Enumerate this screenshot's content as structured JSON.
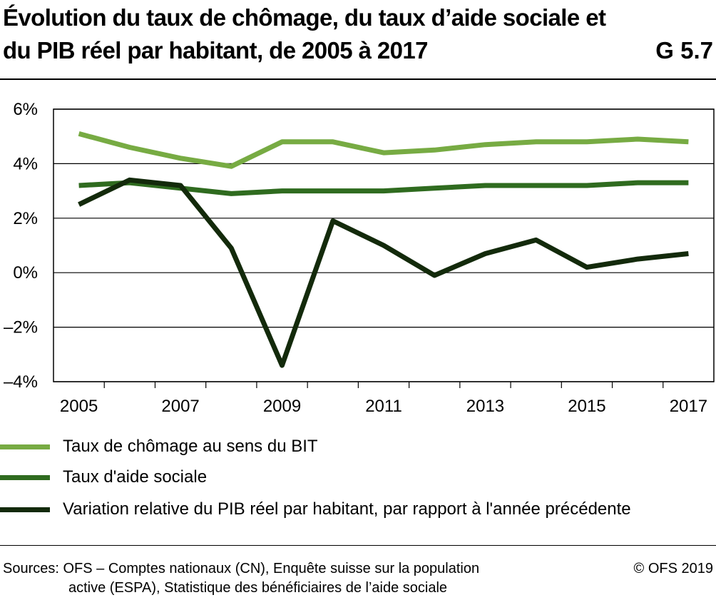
{
  "header": {
    "title": "Évolution du taux de chômage, du taux d’aide sociale et du PIB réel par habitant, de 2005 à 2017",
    "code": "G 5.7"
  },
  "chart_data": {
    "type": "line",
    "title": "Évolution du taux de chômage, du taux d’aide sociale et du PIB réel par habitant, de 2005 à 2017",
    "x": [
      2005,
      2006,
      2007,
      2008,
      2009,
      2010,
      2011,
      2012,
      2013,
      2014,
      2015,
      2016,
      2017
    ],
    "x_tick_labels": [
      "2005",
      "2007",
      "2009",
      "2011",
      "2013",
      "2015",
      "2017"
    ],
    "y_tick_labels": [
      "6%",
      "4%",
      "2%",
      "0%",
      "–2%",
      "–4%"
    ],
    "y_ticks": [
      6,
      4,
      2,
      0,
      -2,
      -4
    ],
    "ylim": [
      -4,
      6
    ],
    "xlabel": "",
    "ylabel": "",
    "grid": true,
    "legend_position": "bottom",
    "series": [
      {
        "name": "Taux de chômage au sens du BIT",
        "color": "#77ab43",
        "values": [
          5.1,
          4.6,
          4.2,
          3.9,
          4.8,
          4.8,
          4.4,
          4.5,
          4.7,
          4.8,
          4.8,
          4.9,
          4.8
        ]
      },
      {
        "name": "Taux d'aide sociale",
        "color": "#2f6b1f",
        "values": [
          3.2,
          3.3,
          3.1,
          2.9,
          3.0,
          3.0,
          3.0,
          3.1,
          3.2,
          3.2,
          3.2,
          3.3,
          3.3
        ]
      },
      {
        "name": "Variation relative du PIB réel par habitant, par rapport à l'année précédente",
        "color": "#132a0b",
        "values": [
          2.5,
          3.4,
          3.2,
          0.9,
          -3.4,
          1.9,
          1.0,
          -0.1,
          0.7,
          1.2,
          0.2,
          0.5,
          0.7
        ]
      }
    ]
  },
  "footer": {
    "source_line1": "Sources: OFS – Comptes nationaux (CN), Enquête suisse sur la population",
    "source_line2": "active (ESPA), Statistique des bénéficiaires de l’aide sociale",
    "copyright": "© OFS 2019"
  }
}
